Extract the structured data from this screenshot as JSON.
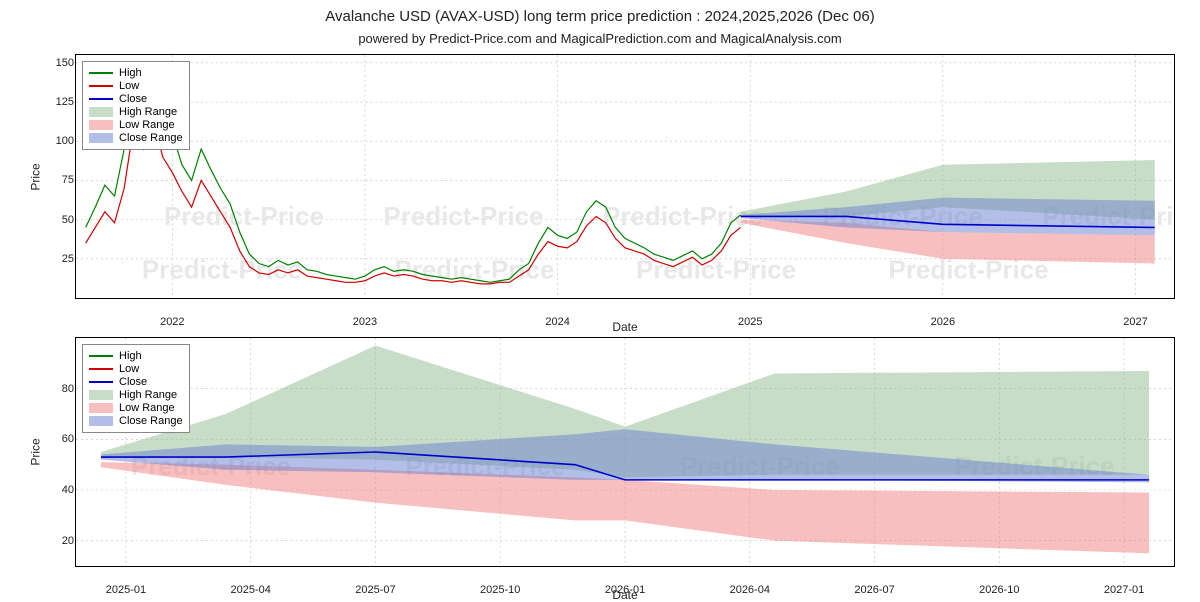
{
  "title": "Avalanche USD (AVAX-USD) long term price prediction : 2024,2025,2026 (Dec 06)",
  "subtitle": "powered by Predict-Price.com and MagicalPrediction.com and MagicalAnalysis.com",
  "watermark_text": "Predict-Price",
  "watermark_color": "#e8e8e8",
  "legend": {
    "high": {
      "label": "High",
      "color": "#008000"
    },
    "low": {
      "label": "Low",
      "color": "#d00000"
    },
    "close": {
      "label": "Close",
      "color": "#0000cc"
    },
    "high_range": {
      "label": "High Range",
      "color": "#8fbc8f",
      "opacity": 0.5
    },
    "low_range": {
      "label": "Low Range",
      "color": "#f08080",
      "opacity": 0.5
    },
    "close_range": {
      "label": "Close Range",
      "color": "#6a7fd0",
      "opacity": 0.5
    }
  },
  "chart_top": {
    "type": "line",
    "xlabel": "Date",
    "ylabel": "Price",
    "ylim": [
      0,
      155
    ],
    "yticks": [
      25,
      50,
      75,
      100,
      125,
      150
    ],
    "xlim_years": [
      2021.5,
      2027.2
    ],
    "xticks": [
      {
        "pos": 2022,
        "label": "2022"
      },
      {
        "pos": 2023,
        "label": "2023"
      },
      {
        "pos": 2024,
        "label": "2024"
      },
      {
        "pos": 2025,
        "label": "2025"
      },
      {
        "pos": 2026,
        "label": "2026"
      },
      {
        "pos": 2027,
        "label": "2027"
      }
    ],
    "historical": {
      "x": [
        2021.55,
        2021.6,
        2021.65,
        2021.7,
        2021.75,
        2021.8,
        2021.85,
        2021.9,
        2021.95,
        2022.0,
        2022.05,
        2022.1,
        2022.15,
        2022.2,
        2022.25,
        2022.3,
        2022.35,
        2022.4,
        2022.45,
        2022.5,
        2022.55,
        2022.6,
        2022.65,
        2022.7,
        2022.75,
        2022.8,
        2022.85,
        2022.9,
        2022.95,
        2023.0,
        2023.05,
        2023.1,
        2023.15,
        2023.2,
        2023.25,
        2023.3,
        2023.35,
        2023.4,
        2023.45,
        2023.5,
        2023.55,
        2023.6,
        2023.65,
        2023.7,
        2023.75,
        2023.8,
        2023.85,
        2023.9,
        2023.95,
        2024.0,
        2024.05,
        2024.1,
        2024.15,
        2024.2,
        2024.25,
        2024.3,
        2024.35,
        2024.4,
        2024.45,
        2024.5,
        2024.55,
        2024.6,
        2024.65,
        2024.7,
        2024.75,
        2024.8,
        2024.85,
        2024.9,
        2024.95
      ],
      "high": [
        45,
        58,
        72,
        65,
        95,
        140,
        120,
        145,
        115,
        105,
        85,
        75,
        95,
        82,
        70,
        60,
        42,
        28,
        22,
        20,
        24,
        21,
        23,
        18,
        17,
        15,
        14,
        13,
        12,
        14,
        18,
        20,
        17,
        18,
        17,
        15,
        14,
        13,
        12,
        13,
        12,
        11,
        10,
        11,
        12,
        18,
        22,
        35,
        45,
        40,
        38,
        42,
        55,
        62,
        58,
        45,
        38,
        35,
        32,
        28,
        26,
        24,
        27,
        30,
        25,
        28,
        35,
        48,
        53
      ],
      "low": [
        35,
        45,
        55,
        48,
        70,
        110,
        95,
        115,
        90,
        80,
        68,
        58,
        75,
        65,
        55,
        45,
        30,
        20,
        16,
        15,
        18,
        16,
        18,
        14,
        13,
        12,
        11,
        10,
        10,
        11,
        14,
        16,
        14,
        15,
        14,
        12,
        11,
        11,
        10,
        11,
        10,
        9,
        9,
        10,
        10,
        14,
        18,
        28,
        36,
        33,
        32,
        36,
        46,
        52,
        48,
        38,
        32,
        30,
        28,
        24,
        22,
        20,
        23,
        26,
        21,
        24,
        30,
        40,
        45
      ]
    },
    "prediction": {
      "x": [
        2024.95,
        2025.5,
        2026.0,
        2027.1
      ],
      "high_upper": [
        55,
        68,
        85,
        88
      ],
      "high_lower": [
        52,
        52,
        58,
        50
      ],
      "low_upper": [
        50,
        48,
        42,
        40
      ],
      "low_lower": [
        48,
        35,
        25,
        22
      ],
      "close_upper": [
        53,
        58,
        64,
        62
      ],
      "close_lower": [
        51,
        45,
        42,
        40
      ],
      "close_line": [
        52,
        52,
        47,
        45
      ]
    }
  },
  "chart_bottom": {
    "type": "line",
    "xlabel": "Date",
    "ylabel": "Price",
    "ylim": [
      10,
      100
    ],
    "yticks": [
      20,
      40,
      60,
      80
    ],
    "xlim": [
      2024.9,
      2027.1
    ],
    "xticks": [
      {
        "pos": 2025.0,
        "label": "2025-01"
      },
      {
        "pos": 2025.25,
        "label": "2025-04"
      },
      {
        "pos": 2025.5,
        "label": "2025-07"
      },
      {
        "pos": 2025.75,
        "label": "2025-10"
      },
      {
        "pos": 2026.0,
        "label": "2026-01"
      },
      {
        "pos": 2026.25,
        "label": "2026-04"
      },
      {
        "pos": 2026.5,
        "label": "2026-07"
      },
      {
        "pos": 2026.75,
        "label": "2026-10"
      },
      {
        "pos": 2027.0,
        "label": "2027-01"
      }
    ],
    "prediction": {
      "x": [
        2024.95,
        2025.2,
        2025.5,
        2025.9,
        2026.0,
        2026.3,
        2027.05
      ],
      "high_upper": [
        55,
        70,
        97,
        72,
        65,
        86,
        87
      ],
      "high_lower": [
        53,
        53,
        52,
        48,
        45,
        46,
        46
      ],
      "low_upper": [
        51,
        50,
        48,
        45,
        44,
        40,
        39
      ],
      "low_lower": [
        49,
        42,
        35,
        28,
        28,
        20,
        15
      ],
      "close_upper": [
        54,
        58,
        57,
        62,
        64,
        58,
        46
      ],
      "close_lower": [
        52,
        48,
        47,
        44,
        44,
        44,
        43
      ],
      "close_line": [
        53,
        53,
        55,
        50,
        44,
        44,
        44
      ]
    }
  }
}
